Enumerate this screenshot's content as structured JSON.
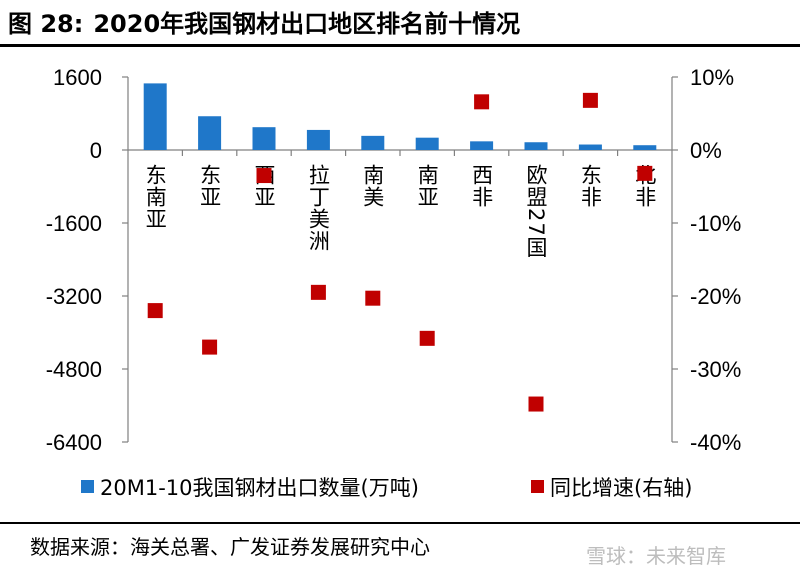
{
  "header": {
    "figure_no": "图 28:",
    "title": "2020年我国钢材出口地区排名前十情况"
  },
  "footer": {
    "source": "数据来源：海关总署、广发证券发展研究中心",
    "watermark": "雪球：未来智库"
  },
  "colors": {
    "bar": "#1f77c9",
    "marker": "#c00000",
    "axis": "#808080"
  },
  "chart_data": {
    "type": "bar",
    "categories": [
      "东南亚",
      "东亚",
      "西亚",
      "拉丁美洲",
      "南美",
      "南亚",
      "西非",
      "欧盟27国",
      "东非",
      "北非"
    ],
    "series": [
      {
        "name": "20M1-10我国钢材出口数量(万吨)",
        "type": "bar",
        "axis": "left",
        "values": [
          1460,
          740,
          500,
          440,
          310,
          270,
          190,
          170,
          120,
          105
        ]
      },
      {
        "name": "同比增速(右轴)",
        "type": "scatter",
        "axis": "right",
        "values": [
          -22.0,
          -27.0,
          -3.5,
          -19.5,
          -20.3,
          -25.8,
          6.6,
          -34.8,
          6.8,
          -3.2
        ]
      }
    ],
    "y_left": {
      "min": -6400,
      "max": 1600,
      "ticks": [
        1600,
        0,
        -1600,
        -3200,
        -4800,
        -6400
      ]
    },
    "y_right": {
      "min": -40,
      "max": 10,
      "ticks": [
        "10%",
        "0%",
        "-10%",
        "-20%",
        "-30%",
        "-40%"
      ]
    },
    "legend_position": "bottom",
    "grid": false
  }
}
